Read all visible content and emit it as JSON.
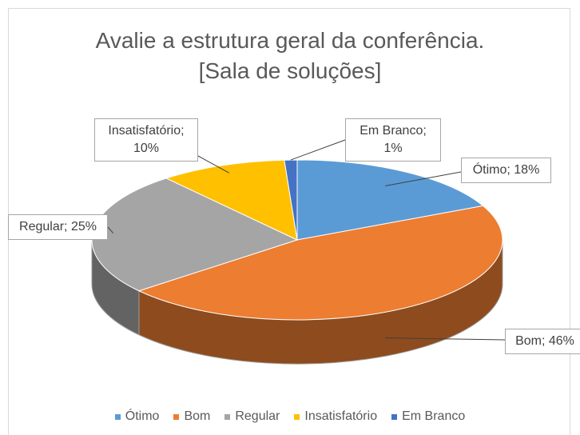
{
  "chart_data": {
    "type": "pie",
    "title": "Avalie a estrutura geral da conferência. [Sala de soluções]",
    "categories": [
      "Ótimo",
      "Bom",
      "Regular",
      "Insatisfatório",
      "Em Branco"
    ],
    "values": [
      18,
      46,
      25,
      10,
      1
    ],
    "value_labels": [
      "Ótimo; 18%",
      "Bom; 46%",
      "Regular; 25%",
      "Insatisfatório; 10%",
      "Em Branco; 1%"
    ],
    "colors": [
      "#5b9bd5",
      "#ed7d31",
      "#a5a5a5",
      "#ffc000",
      "#4472c4"
    ],
    "legend": "bottom"
  }
}
